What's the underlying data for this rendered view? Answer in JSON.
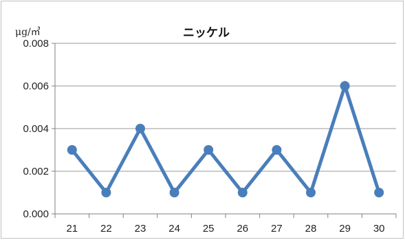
{
  "chart_data": {
    "type": "line",
    "title": "ニッケル",
    "ylabel": "μg/㎥",
    "xlabel": "",
    "categories": [
      "21",
      "22",
      "23",
      "24",
      "25",
      "26",
      "27",
      "28",
      "29",
      "30"
    ],
    "series": [
      {
        "values": [
          0.003,
          0.001,
          0.004,
          0.001,
          0.003,
          0.001,
          0.003,
          0.001,
          0.006,
          0.001
        ]
      }
    ],
    "ylim": [
      0,
      0.008
    ],
    "yticks": [
      "0.000",
      "0.002",
      "0.004",
      "0.006",
      "0.008"
    ],
    "grid": true,
    "legend": "none",
    "colors": {
      "series": "#4a7ebb",
      "grid": "#9a9a9a",
      "axis": "#808080"
    }
  }
}
